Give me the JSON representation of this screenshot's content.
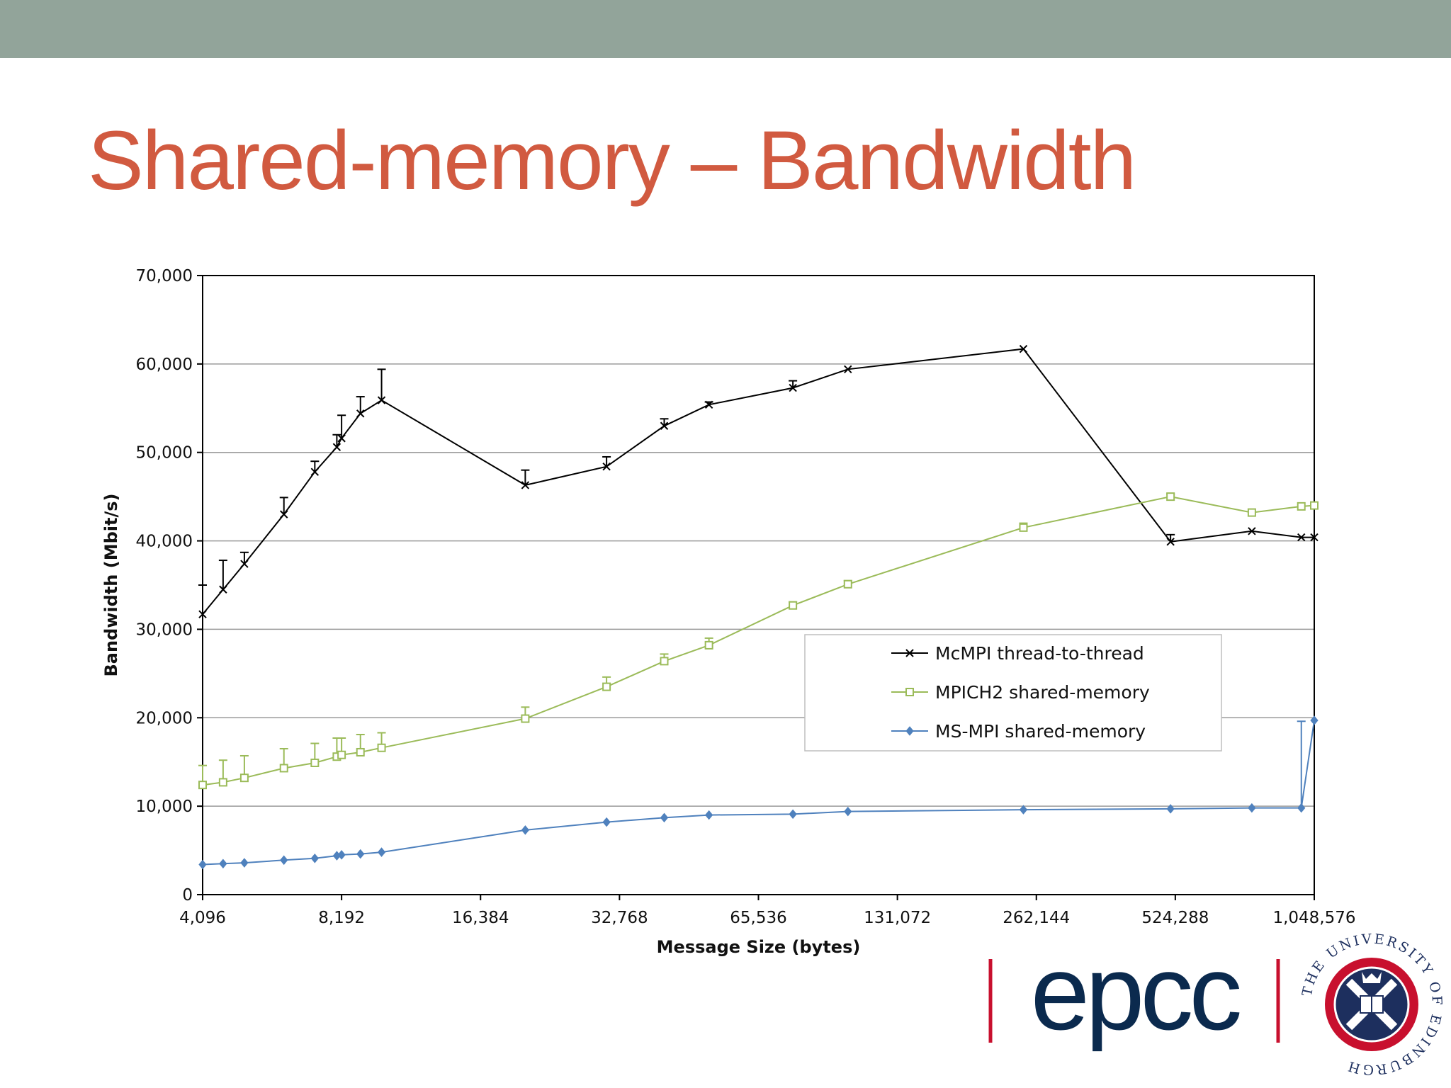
{
  "slide": {
    "title": "Shared-memory – Bandwidth"
  },
  "logos": {
    "epcc": "epcc",
    "university": "THE UNIVERSITY OF EDINBURGH"
  },
  "chart_data": {
    "type": "line",
    "title": "",
    "xlabel": "Message Size (bytes)",
    "ylabel": "Bandwidth (Mbit/s)",
    "x_scale": "log2",
    "xlim": [
      4096,
      1048576
    ],
    "ylim": [
      0,
      70000
    ],
    "x_ticks": [
      4096,
      8192,
      16384,
      32768,
      65536,
      131072,
      262144,
      524288,
      1048576
    ],
    "x_tick_labels": [
      "4,096",
      "8,192",
      "16,384",
      "32,768",
      "65,536",
      "131,072",
      "262,144",
      "524,288",
      "1,048,576"
    ],
    "y_ticks": [
      0,
      10000,
      20000,
      30000,
      40000,
      50000,
      60000,
      70000
    ],
    "y_tick_labels": [
      "0",
      "10,000",
      "20,000",
      "30,000",
      "40,000",
      "50,000",
      "60,000",
      "70,000"
    ],
    "grid": "horizontal",
    "legend_position": "center-right",
    "series": [
      {
        "name": "McMPI thread-to-thread",
        "color": "#000000",
        "marker": "x",
        "error_bars": true,
        "points": [
          [
            4096,
            31700,
            35000
          ],
          [
            4536,
            34500,
            37800
          ],
          [
            5044,
            37400,
            38700
          ],
          [
            6144,
            43000,
            44900
          ],
          [
            7168,
            47800,
            49000
          ],
          [
            8000,
            50600,
            52000
          ],
          [
            8192,
            51600,
            54200
          ],
          [
            9000,
            54400,
            56300
          ],
          [
            10000,
            55900,
            59400
          ],
          [
            20480,
            46300,
            48000
          ],
          [
            30720,
            48400,
            49500
          ],
          [
            40960,
            53000,
            53800
          ],
          [
            51200,
            55400,
            55700
          ],
          [
            77824,
            57300,
            58100
          ],
          [
            102400,
            59400,
            59500
          ],
          [
            245760,
            61700,
            61800
          ],
          [
            512000,
            39900,
            40700
          ],
          [
            768000,
            41100,
            41200
          ],
          [
            983040,
            40400,
            40500
          ],
          [
            1048576,
            40400,
            40450
          ]
        ]
      },
      {
        "name": "MPICH2 shared-memory",
        "color": "#9bbb59",
        "marker": "square",
        "error_bars": true,
        "points": [
          [
            4096,
            12400,
            14600
          ],
          [
            4536,
            12700,
            15200
          ],
          [
            5044,
            13200,
            15700
          ],
          [
            6144,
            14300,
            16500
          ],
          [
            7168,
            14900,
            17100
          ],
          [
            8000,
            15600,
            17700
          ],
          [
            8192,
            15800,
            17700
          ],
          [
            9000,
            16100,
            18100
          ],
          [
            10000,
            16600,
            18300
          ],
          [
            20480,
            19900,
            21200
          ],
          [
            30720,
            23500,
            24600
          ],
          [
            40960,
            26400,
            27200
          ],
          [
            51200,
            28200,
            29000
          ],
          [
            77824,
            32700,
            33100
          ],
          [
            102400,
            35100,
            35500
          ],
          [
            245760,
            41500,
            42000
          ],
          [
            512000,
            45000,
            45300
          ],
          [
            768000,
            43200,
            43300
          ],
          [
            983040,
            43900,
            44000
          ],
          [
            1048576,
            44000,
            44100
          ]
        ]
      },
      {
        "name": "MS-MPI shared-memory",
        "color": "#4f81bd",
        "marker": "diamond",
        "error_bars": true,
        "points": [
          [
            4096,
            3400,
            3500
          ],
          [
            4536,
            3500,
            3600
          ],
          [
            5044,
            3600,
            3700
          ],
          [
            6144,
            3900,
            4000
          ],
          [
            7168,
            4100,
            4200
          ],
          [
            8000,
            4400,
            4500
          ],
          [
            8192,
            4500,
            4600
          ],
          [
            9000,
            4600,
            4700
          ],
          [
            10000,
            4800,
            4900
          ],
          [
            20480,
            7300,
            7400
          ],
          [
            30720,
            8200,
            8300
          ],
          [
            40960,
            8700,
            8800
          ],
          [
            51200,
            9000,
            9100
          ],
          [
            77824,
            9100,
            9200
          ],
          [
            102400,
            9400,
            9500
          ],
          [
            245760,
            9600,
            9700
          ],
          [
            512000,
            9700,
            9800
          ],
          [
            768000,
            9800,
            9900
          ],
          [
            983040,
            9800,
            19600
          ],
          [
            1048576,
            19700,
            19800
          ]
        ]
      }
    ]
  }
}
